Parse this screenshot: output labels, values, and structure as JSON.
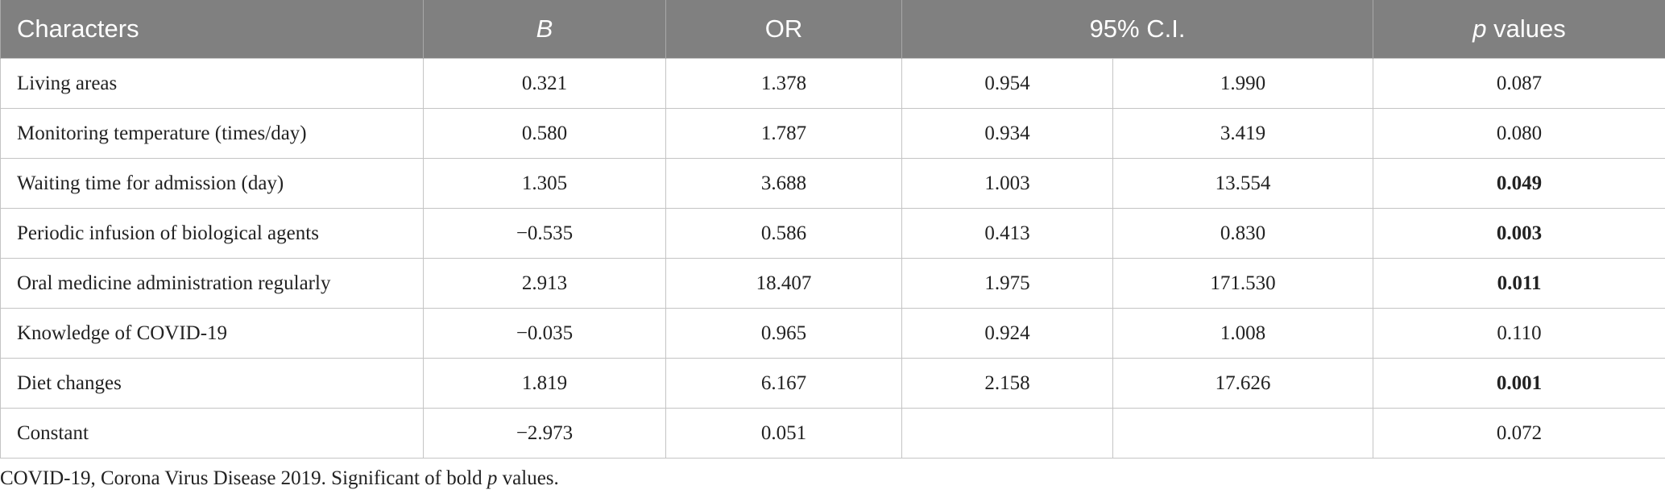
{
  "header": {
    "characters": "Characters",
    "b": "B",
    "or": "OR",
    "ci": "95% C.I.",
    "p_symbol": "p",
    "p_word": "values"
  },
  "rows": [
    {
      "label": "Living areas",
      "b": "0.321",
      "or": "1.378",
      "ci_low": "0.954",
      "ci_high": "1.990",
      "p": "0.087",
      "significant": false
    },
    {
      "label": "Monitoring temperature (times/day)",
      "b": "0.580",
      "or": "1.787",
      "ci_low": "0.934",
      "ci_high": "3.419",
      "p": "0.080",
      "significant": false
    },
    {
      "label": "Waiting time for admission (day)",
      "b": "1.305",
      "or": "3.688",
      "ci_low": "1.003",
      "ci_high": "13.554",
      "p": "0.049",
      "significant": true
    },
    {
      "label": "Periodic infusion of biological agents",
      "b": "−0.535",
      "or": "0.586",
      "ci_low": "0.413",
      "ci_high": "0.830",
      "p": "0.003",
      "significant": true
    },
    {
      "label": "Oral medicine administration regularly",
      "b": "2.913",
      "or": "18.407",
      "ci_low": "1.975",
      "ci_high": "171.530",
      "p": "0.011",
      "significant": true
    },
    {
      "label": "Knowledge of COVID-19",
      "b": "−0.035",
      "or": "0.965",
      "ci_low": "0.924",
      "ci_high": "1.008",
      "p": "0.110",
      "significant": false
    },
    {
      "label": "Diet changes",
      "b": "1.819",
      "or": "6.167",
      "ci_low": "2.158",
      "ci_high": "17.626",
      "p": "0.001",
      "significant": true
    },
    {
      "label": "Constant",
      "b": "−2.973",
      "or": "0.051",
      "ci_low": null,
      "ci_high": null,
      "p": "0.072",
      "significant": false
    }
  ],
  "footnote": {
    "text": "COVID-19, Corona Virus Disease 2019. Significant of bold",
    "p_symbol": "p",
    "end": "values."
  }
}
